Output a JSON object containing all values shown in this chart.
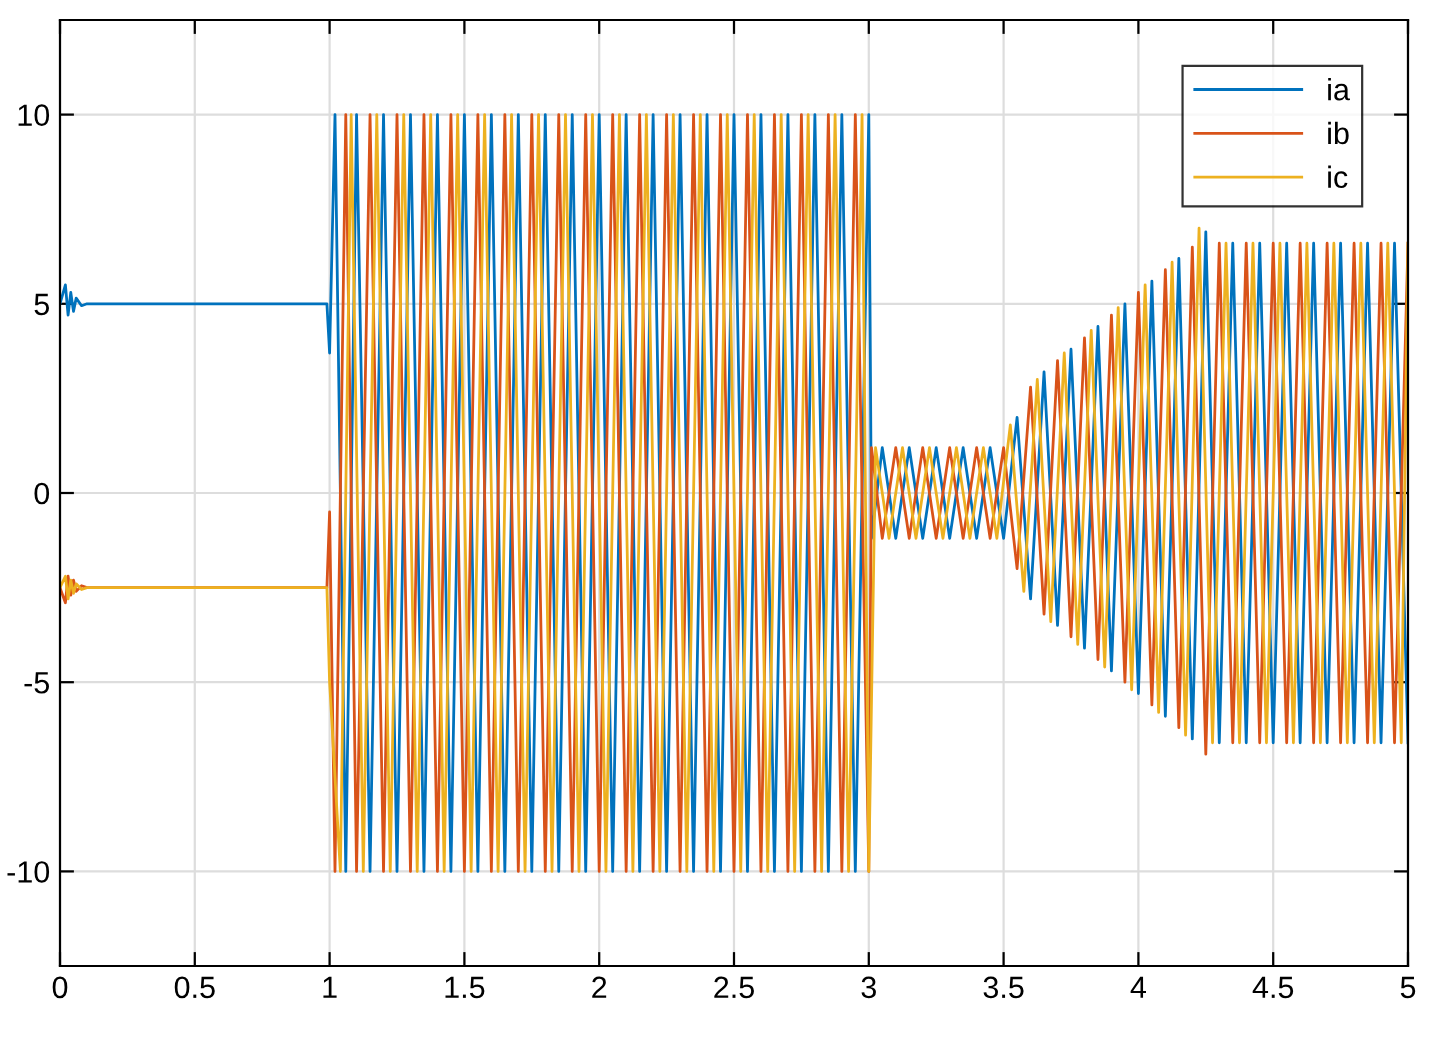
{
  "chart_data": {
    "type": "line",
    "xlim": [
      0,
      5
    ],
    "ylim": [
      -12.5,
      12.5
    ],
    "xticks": [
      0,
      0.5,
      1,
      1.5,
      2,
      2.5,
      3,
      3.5,
      4,
      4.5,
      5
    ],
    "yticks": [
      -10,
      -5,
      0,
      5,
      10
    ],
    "grid": true,
    "legend": "top right",
    "line_style": "solid",
    "x": [
      0,
      0.02,
      0.03,
      0.04,
      0.05,
      0.06,
      0.08,
      0.1,
      0.2,
      0.5,
      0.99,
      1.0,
      1.02,
      1.06,
      1.1,
      1.15,
      1.2,
      1.25,
      1.3,
      1.35,
      1.4,
      1.45,
      1.5,
      1.55,
      1.6,
      1.65,
      1.7,
      1.75,
      1.8,
      1.85,
      1.9,
      1.95,
      2.0,
      2.05,
      2.1,
      2.15,
      2.2,
      2.25,
      2.3,
      2.35,
      2.4,
      2.45,
      2.5,
      2.55,
      2.6,
      2.65,
      2.7,
      2.75,
      2.8,
      2.85,
      2.9,
      2.95,
      3.0,
      3.01,
      3.05,
      3.1,
      3.15,
      3.2,
      3.25,
      3.3,
      3.35,
      3.4,
      3.45,
      3.5,
      3.55,
      3.6,
      3.65,
      3.7,
      3.75,
      3.8,
      3.85,
      3.9,
      3.95,
      4.0,
      4.05,
      4.1,
      4.15,
      4.2,
      4.25,
      4.3,
      4.35,
      4.4,
      4.45,
      4.5,
      4.55,
      4.6,
      4.65,
      4.7,
      4.75,
      4.8,
      4.85,
      4.9,
      4.95,
      5.0
    ],
    "series": [
      {
        "name": "ia",
        "color": "#0072bd",
        "values": [
          5,
          5.5,
          4.7,
          5.3,
          4.8,
          5.15,
          4.95,
          5,
          5,
          5,
          5,
          3.7,
          10,
          -10,
          10,
          -10,
          10,
          -10,
          10,
          -10,
          10,
          -10,
          10,
          -10,
          10,
          -10,
          10,
          -10,
          10,
          -10,
          10,
          -10,
          10,
          -10,
          10,
          -10,
          10,
          -10,
          10,
          -10,
          10,
          -10,
          10,
          -10,
          10,
          -10,
          10,
          -10,
          10,
          -10,
          10,
          -10,
          10,
          -1.2,
          1.2,
          -1.2,
          1.2,
          -1.2,
          1.2,
          -1.2,
          1.2,
          -1.2,
          1.2,
          -1.2,
          2.0,
          -2.8,
          3.2,
          -3.5,
          3.8,
          -4.1,
          4.4,
          -4.7,
          5.0,
          -5.3,
          5.6,
          -5.9,
          6.2,
          -6.5,
          6.9,
          -6.6,
          6.6,
          -6.6,
          6.6,
          -6.6,
          6.6,
          -6.6,
          6.6,
          -6.6,
          6.6,
          -6.6,
          6.6,
          -6.6,
          6.6,
          -6.6
        ]
      },
      {
        "name": "ib",
        "color": "#d95319",
        "values": [
          -2.5,
          -2.9,
          -2.2,
          -2.7,
          -2.3,
          -2.6,
          -2.45,
          -2.5,
          -2.5,
          -2.5,
          -2.5,
          -0.5,
          -10,
          10,
          -10,
          10,
          -10,
          10,
          -10,
          10,
          -10,
          10,
          -10,
          10,
          -10,
          10,
          -10,
          10,
          -10,
          10,
          -10,
          10,
          -10,
          10,
          -10,
          10,
          -10,
          10,
          -10,
          10,
          -10,
          10,
          -10,
          10,
          -10,
          10,
          -10,
          10,
          -10,
          10,
          -10,
          10,
          -10,
          1.2,
          -1.2,
          1.2,
          -1.2,
          1.2,
          -1.2,
          1.2,
          -1.2,
          1.2,
          -1.2,
          1.2,
          -2.0,
          2.8,
          -3.2,
          3.5,
          -3.8,
          4.1,
          -4.4,
          4.7,
          -5.0,
          5.3,
          -5.6,
          5.9,
          -6.2,
          6.5,
          -6.9,
          6.6,
          -6.6,
          6.6,
          -6.6,
          6.6,
          -6.6,
          6.6,
          -6.6,
          6.6,
          -6.6,
          6.6,
          -6.6,
          6.6,
          -6.6,
          6.6
        ]
      },
      {
        "name": "ic",
        "color": "#edb120",
        "x": [
          0,
          0.02,
          0.03,
          0.04,
          0.05,
          0.06,
          0.08,
          0.1,
          0.2,
          0.5,
          0.99,
          1.0,
          1.04,
          1.08,
          1.125,
          1.175,
          1.225,
          1.275,
          1.325,
          1.375,
          1.425,
          1.475,
          1.525,
          1.575,
          1.625,
          1.675,
          1.725,
          1.775,
          1.825,
          1.875,
          1.925,
          1.975,
          2.025,
          2.075,
          2.125,
          2.175,
          2.225,
          2.275,
          2.325,
          2.375,
          2.425,
          2.475,
          2.525,
          2.575,
          2.625,
          2.675,
          2.725,
          2.775,
          2.825,
          2.875,
          2.925,
          2.975,
          3.0,
          3.025,
          3.075,
          3.125,
          3.175,
          3.225,
          3.275,
          3.325,
          3.375,
          3.425,
          3.475,
          3.525,
          3.575,
          3.625,
          3.675,
          3.725,
          3.775,
          3.825,
          3.875,
          3.925,
          3.975,
          4.025,
          4.075,
          4.125,
          4.175,
          4.225,
          4.275,
          4.325,
          4.375,
          4.425,
          4.475,
          4.525,
          4.575,
          4.625,
          4.675,
          4.725,
          4.775,
          4.825,
          4.875,
          4.925,
          4.975,
          5.0
        ],
        "values": [
          -2.5,
          -2.2,
          -2.8,
          -2.3,
          -2.65,
          -2.4,
          -2.55,
          -2.5,
          -2.5,
          -2.5,
          -2.5,
          -5,
          -10,
          10,
          -10,
          10,
          -10,
          10,
          -10,
          10,
          -10,
          10,
          -10,
          10,
          -10,
          10,
          -10,
          10,
          -10,
          10,
          -10,
          10,
          -10,
          10,
          -10,
          10,
          -10,
          10,
          -10,
          10,
          -10,
          10,
          -10,
          10,
          -10,
          10,
          -10,
          10,
          -10,
          10,
          -10,
          10,
          -10,
          1.2,
          -1.2,
          1.2,
          -1.2,
          1.2,
          -1.2,
          1.2,
          -1.2,
          1.2,
          -1.2,
          1.8,
          -2.6,
          3.0,
          -3.4,
          3.7,
          -4.0,
          4.3,
          -4.6,
          4.9,
          -5.2,
          5.5,
          -5.8,
          6.1,
          -6.4,
          7.0,
          -6.6,
          6.6,
          -6.6,
          6.6,
          -6.6,
          6.6,
          -6.6,
          6.6,
          -6.6,
          6.6,
          -6.6,
          6.6,
          -6.6,
          6.6,
          -6.6,
          6.6
        ]
      }
    ]
  }
}
